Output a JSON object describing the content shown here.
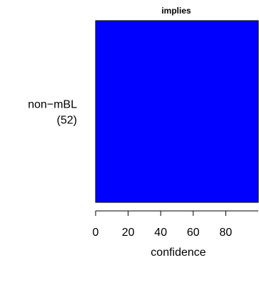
{
  "chart_data": {
    "type": "bar",
    "orientation": "horizontal",
    "title": "implies",
    "xlabel": "confidence",
    "ylabel": "",
    "categories": [
      {
        "name": "non−mBL",
        "count": "(52)"
      }
    ],
    "values": [
      100
    ],
    "xlim": [
      0,
      100
    ],
    "xticks": [
      0,
      20,
      40,
      60,
      80
    ],
    "bar_color": "#0000ff",
    "bar_border_color": "#000000",
    "grid": false,
    "legend": "none"
  }
}
